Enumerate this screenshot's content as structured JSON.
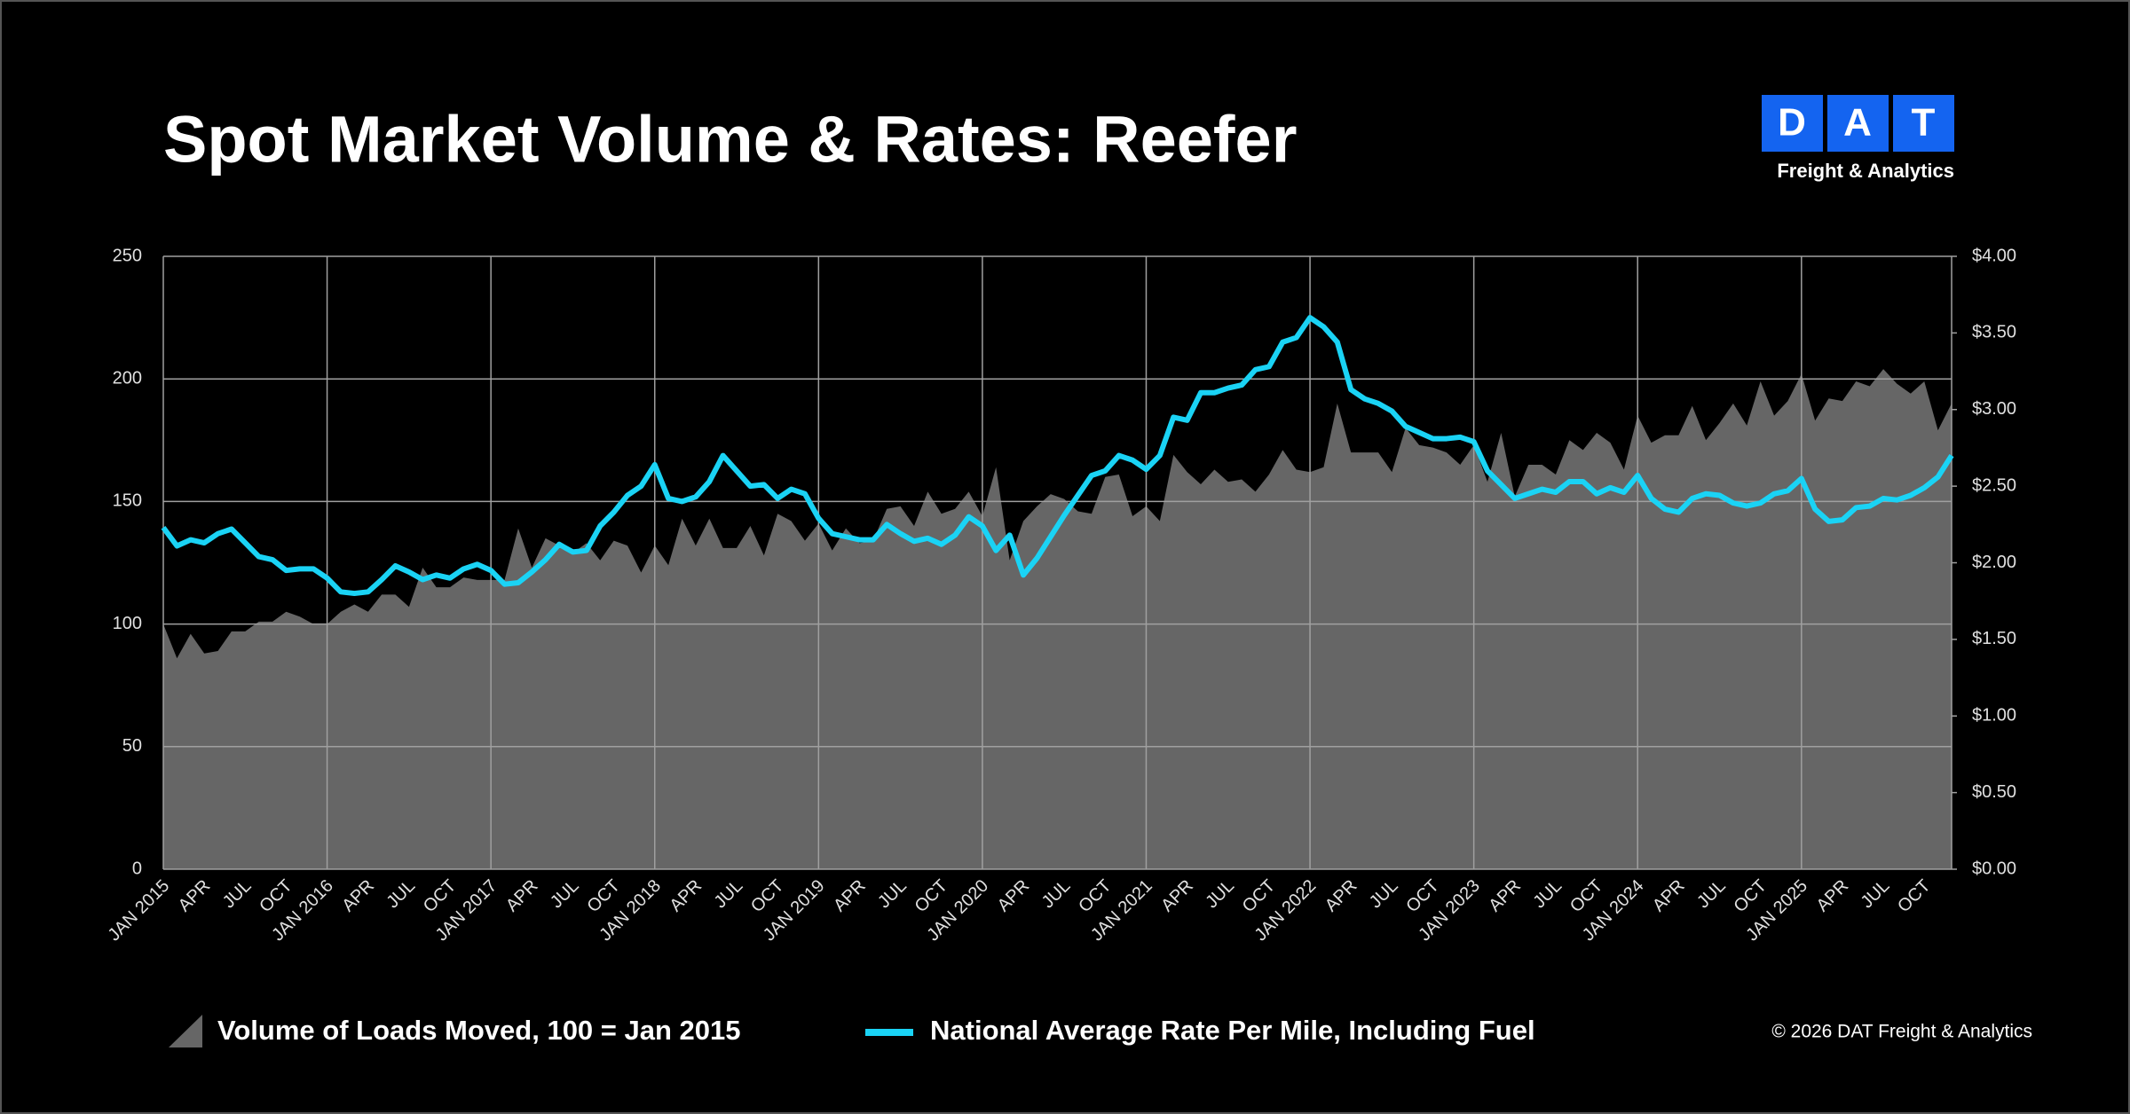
{
  "chart_data": {
    "type": "combo",
    "title": "Spot Market Volume & Rates: Reefer",
    "logo": {
      "letters": [
        "D",
        "A",
        "T"
      ],
      "tagline": "Freight & Analytics"
    },
    "source": "© 2026 DAT Freight & Analytics",
    "categories": [
      "JAN 2015",
      null,
      null,
      "APR",
      null,
      null,
      "JUL",
      null,
      null,
      "OCT",
      null,
      null,
      "JAN 2016",
      null,
      null,
      "APR",
      null,
      null,
      "JUL",
      null,
      null,
      "OCT",
      null,
      null,
      "JAN 2017",
      null,
      null,
      "APR",
      null,
      null,
      "JUL",
      null,
      null,
      "OCT",
      null,
      null,
      "JAN 2018",
      null,
      null,
      "APR",
      null,
      null,
      "JUL",
      null,
      null,
      "OCT",
      null,
      null,
      "JAN 2019",
      null,
      null,
      "APR",
      null,
      null,
      "JUL",
      null,
      null,
      "OCT",
      null,
      null,
      "JAN 2020",
      null,
      null,
      "APR",
      null,
      null,
      "JUL",
      null,
      null,
      "OCT",
      null,
      null,
      "JAN 2021",
      null,
      null,
      "APR",
      null,
      null,
      "JUL",
      null,
      null,
      "OCT",
      null,
      null,
      "JAN 2022",
      null,
      null,
      "APR",
      null,
      null,
      "JUL",
      null,
      null,
      "OCT",
      null,
      null,
      "JAN 2023",
      null,
      null,
      "APR",
      null,
      null,
      "JUL",
      null,
      null,
      "OCT",
      null,
      null,
      "JAN 2024",
      null,
      null,
      "APR",
      null,
      null,
      "JUL",
      null,
      null,
      "OCT",
      null,
      null,
      "JAN 2025",
      null,
      null,
      "APR",
      null,
      null,
      "JUL",
      null,
      null,
      "OCT",
      null,
      null
    ],
    "series": [
      {
        "name": "Volume of Loads Moved, 100 = Jan 2015",
        "type": "area",
        "color": "#666666",
        "axis": "y",
        "values": [
          100,
          86,
          96,
          88,
          89,
          97,
          97,
          101,
          101,
          105,
          103,
          100,
          100,
          105,
          108,
          105,
          112,
          112,
          107,
          123,
          115,
          115,
          119,
          118,
          118,
          118,
          139,
          123,
          135,
          132,
          129,
          133,
          126,
          134,
          132,
          121,
          132,
          124,
          143,
          132,
          143,
          131,
          131,
          140,
          128,
          145,
          142,
          134,
          141,
          130,
          139,
          133,
          134,
          147,
          148,
          140,
          154,
          145,
          147,
          154,
          144,
          164,
          126,
          142,
          148,
          153,
          151,
          146,
          145,
          160,
          161,
          144,
          148,
          142,
          169,
          162,
          157,
          163,
          158,
          159,
          154,
          161,
          171,
          163,
          162,
          164,
          190,
          170,
          170,
          170,
          162,
          180,
          173,
          172,
          170,
          165,
          173,
          158,
          178,
          152,
          165,
          165,
          161,
          175,
          171,
          178,
          174,
          163,
          185,
          174,
          177,
          177,
          189,
          175,
          182,
          190,
          181,
          199,
          185,
          191,
          202,
          183,
          192,
          191,
          199,
          197,
          204,
          198,
          194,
          199,
          179,
          190
        ]
      },
      {
        "name": "National Average Rate Per Mile, Including Fuel",
        "type": "line",
        "color": "#1ad3f5",
        "axis": "y2",
        "values": [
          2.23,
          2.11,
          2.15,
          2.13,
          2.19,
          2.22,
          2.13,
          2.04,
          2.02,
          1.95,
          1.96,
          1.96,
          1.9,
          1.81,
          1.8,
          1.81,
          1.89,
          1.98,
          1.94,
          1.89,
          1.92,
          1.9,
          1.96,
          1.99,
          1.95,
          1.86,
          1.87,
          1.94,
          2.02,
          2.12,
          2.07,
          2.08,
          2.24,
          2.33,
          2.44,
          2.5,
          2.64,
          2.42,
          2.4,
          2.43,
          2.53,
          2.7,
          2.6,
          2.5,
          2.51,
          2.42,
          2.48,
          2.45,
          2.29,
          2.19,
          2.17,
          2.15,
          2.15,
          2.25,
          2.19,
          2.14,
          2.16,
          2.12,
          2.18,
          2.3,
          2.24,
          2.08,
          2.18,
          1.92,
          2.03,
          2.17,
          2.31,
          2.44,
          2.57,
          2.6,
          2.7,
          2.67,
          2.61,
          2.7,
          2.95,
          2.93,
          3.11,
          3.11,
          3.14,
          3.16,
          3.26,
          3.28,
          3.44,
          3.47,
          3.6,
          3.54,
          3.44,
          3.13,
          3.07,
          3.04,
          2.99,
          2.89,
          2.85,
          2.81,
          2.81,
          2.82,
          2.79,
          2.6,
          2.51,
          2.42,
          2.45,
          2.48,
          2.46,
          2.53,
          2.53,
          2.45,
          2.49,
          2.46,
          2.57,
          2.42,
          2.35,
          2.33,
          2.42,
          2.45,
          2.44,
          2.39,
          2.37,
          2.39,
          2.45,
          2.47,
          2.55,
          2.35,
          2.27,
          2.28,
          2.36,
          2.37,
          2.42,
          2.41,
          2.44,
          2.49,
          2.56,
          2.7
        ]
      }
    ],
    "ylim": [
      0,
      250
    ],
    "yticks": [
      0,
      50,
      100,
      150,
      200,
      250
    ],
    "y2lim": [
      0,
      4
    ],
    "y2ticks": [
      {
        "value": 0,
        "label": "$0.00"
      },
      {
        "value": 0.5,
        "label": "$0.50"
      },
      {
        "value": 1,
        "label": "$1.00"
      },
      {
        "value": 1.5,
        "label": "$1.50"
      },
      {
        "value": 2,
        "label": "$2.00"
      },
      {
        "value": 2.5,
        "label": "$2.50"
      },
      {
        "value": 3,
        "label": "$3.00"
      },
      {
        "value": 3.5,
        "label": "$3.50"
      },
      {
        "value": 4,
        "label": "$4.00"
      }
    ],
    "grid": true,
    "legend": "bottom"
  }
}
